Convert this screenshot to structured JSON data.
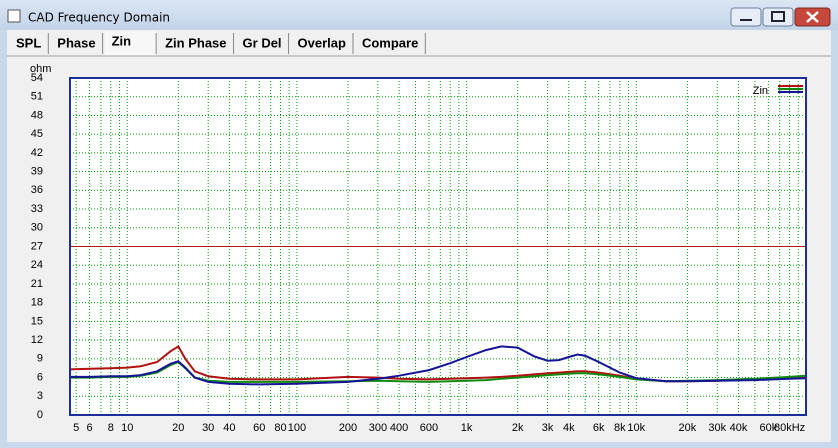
{
  "window": {
    "title": "CAD Frequency Domain",
    "tabs": [
      "SPL",
      "Phase",
      "Zin",
      "Zin Phase",
      "Gr Del",
      "Overlap",
      "Compare"
    ],
    "selected_tab": 2
  },
  "chart_data": {
    "type": "line",
    "y_unit": "ohm",
    "legend": "Zin",
    "log_x": true,
    "grid": true,
    "xlim": [
      4.6,
      100000
    ],
    "ylim": [
      0,
      54
    ],
    "yticks": [
      0,
      3,
      6,
      9,
      12,
      15,
      18,
      21,
      24,
      27,
      30,
      33,
      36,
      39,
      42,
      45,
      48,
      51,
      54
    ],
    "xticks": [
      5,
      6,
      8,
      10,
      20,
      30,
      40,
      60,
      80,
      100,
      200,
      300,
      400,
      600,
      {
        "value": 1000,
        "label": "1k"
      },
      {
        "value": 2000,
        "label": "2k"
      },
      {
        "value": 3000,
        "label": "3k"
      },
      {
        "value": 4000,
        "label": "4k"
      },
      {
        "value": 6000,
        "label": "6k"
      },
      {
        "value": 8000,
        "label": "8k"
      },
      {
        "value": 10000,
        "label": "10k"
      },
      {
        "value": 20000,
        "label": "20k"
      },
      {
        "value": 30000,
        "label": "30k"
      },
      {
        "value": 40000,
        "label": "40k"
      },
      {
        "value": 60000,
        "label": "60k"
      },
      {
        "value": 80000,
        "label": "80kHz"
      }
    ],
    "xminor": [
      7,
      9,
      50,
      70,
      90,
      500,
      700,
      800,
      900,
      5000,
      7000,
      9000,
      50000,
      70000,
      90000
    ],
    "reference_line": {
      "value": 27,
      "color": "#b01818"
    },
    "x": [
      4.6,
      6,
      8,
      10,
      12,
      15,
      18,
      20,
      22,
      25,
      30,
      40,
      60,
      100,
      200,
      300,
      400,
      600,
      800,
      1000,
      1300,
      1600,
      2000,
      2500,
      3000,
      3500,
      4000,
      4500,
      5000,
      6000,
      8000,
      10000,
      15000,
      20000,
      30000,
      50000,
      80000,
      100000
    ],
    "series": [
      {
        "color": "#b01010",
        "values": [
          7.3,
          7.4,
          7.5,
          7.6,
          7.8,
          8.5,
          10.2,
          11,
          9,
          7,
          6.2,
          5.8,
          5.7,
          5.7,
          6.1,
          6.0,
          5.8,
          5.7,
          5.8,
          5.9,
          6.0,
          6.1,
          6.3,
          6.5,
          6.7,
          6.8,
          6.9,
          7.0,
          7.0,
          6.8,
          6.3,
          5.8,
          5.4,
          5.4,
          5.5,
          5.7,
          5.9,
          6.0
        ]
      },
      {
        "color": "#108a10",
        "values": [
          6.0,
          6.0,
          6.1,
          6.1,
          6.3,
          6.8,
          8.0,
          8.5,
          7.5,
          6.0,
          5.5,
          5.3,
          5.3,
          5.3,
          5.4,
          5.5,
          5.4,
          5.3,
          5.4,
          5.5,
          5.6,
          5.8,
          6.0,
          6.2,
          6.4,
          6.5,
          6.6,
          6.7,
          6.7,
          6.5,
          6.1,
          5.7,
          5.4,
          5.5,
          5.6,
          5.8,
          6.1,
          6.3
        ]
      },
      {
        "color": "#141496",
        "values": [
          6.1,
          6.1,
          6.2,
          6.2,
          6.4,
          7.0,
          8.2,
          8.6,
          7.6,
          6.0,
          5.3,
          5.0,
          4.9,
          5.0,
          5.3,
          5.8,
          6.3,
          7.2,
          8.3,
          9.3,
          10.4,
          11.0,
          10.8,
          9.4,
          8.7,
          8.8,
          9.3,
          9.7,
          9.5,
          8.5,
          6.8,
          5.9,
          5.4,
          5.4,
          5.5,
          5.6,
          5.8,
          5.9
        ]
      }
    ]
  }
}
